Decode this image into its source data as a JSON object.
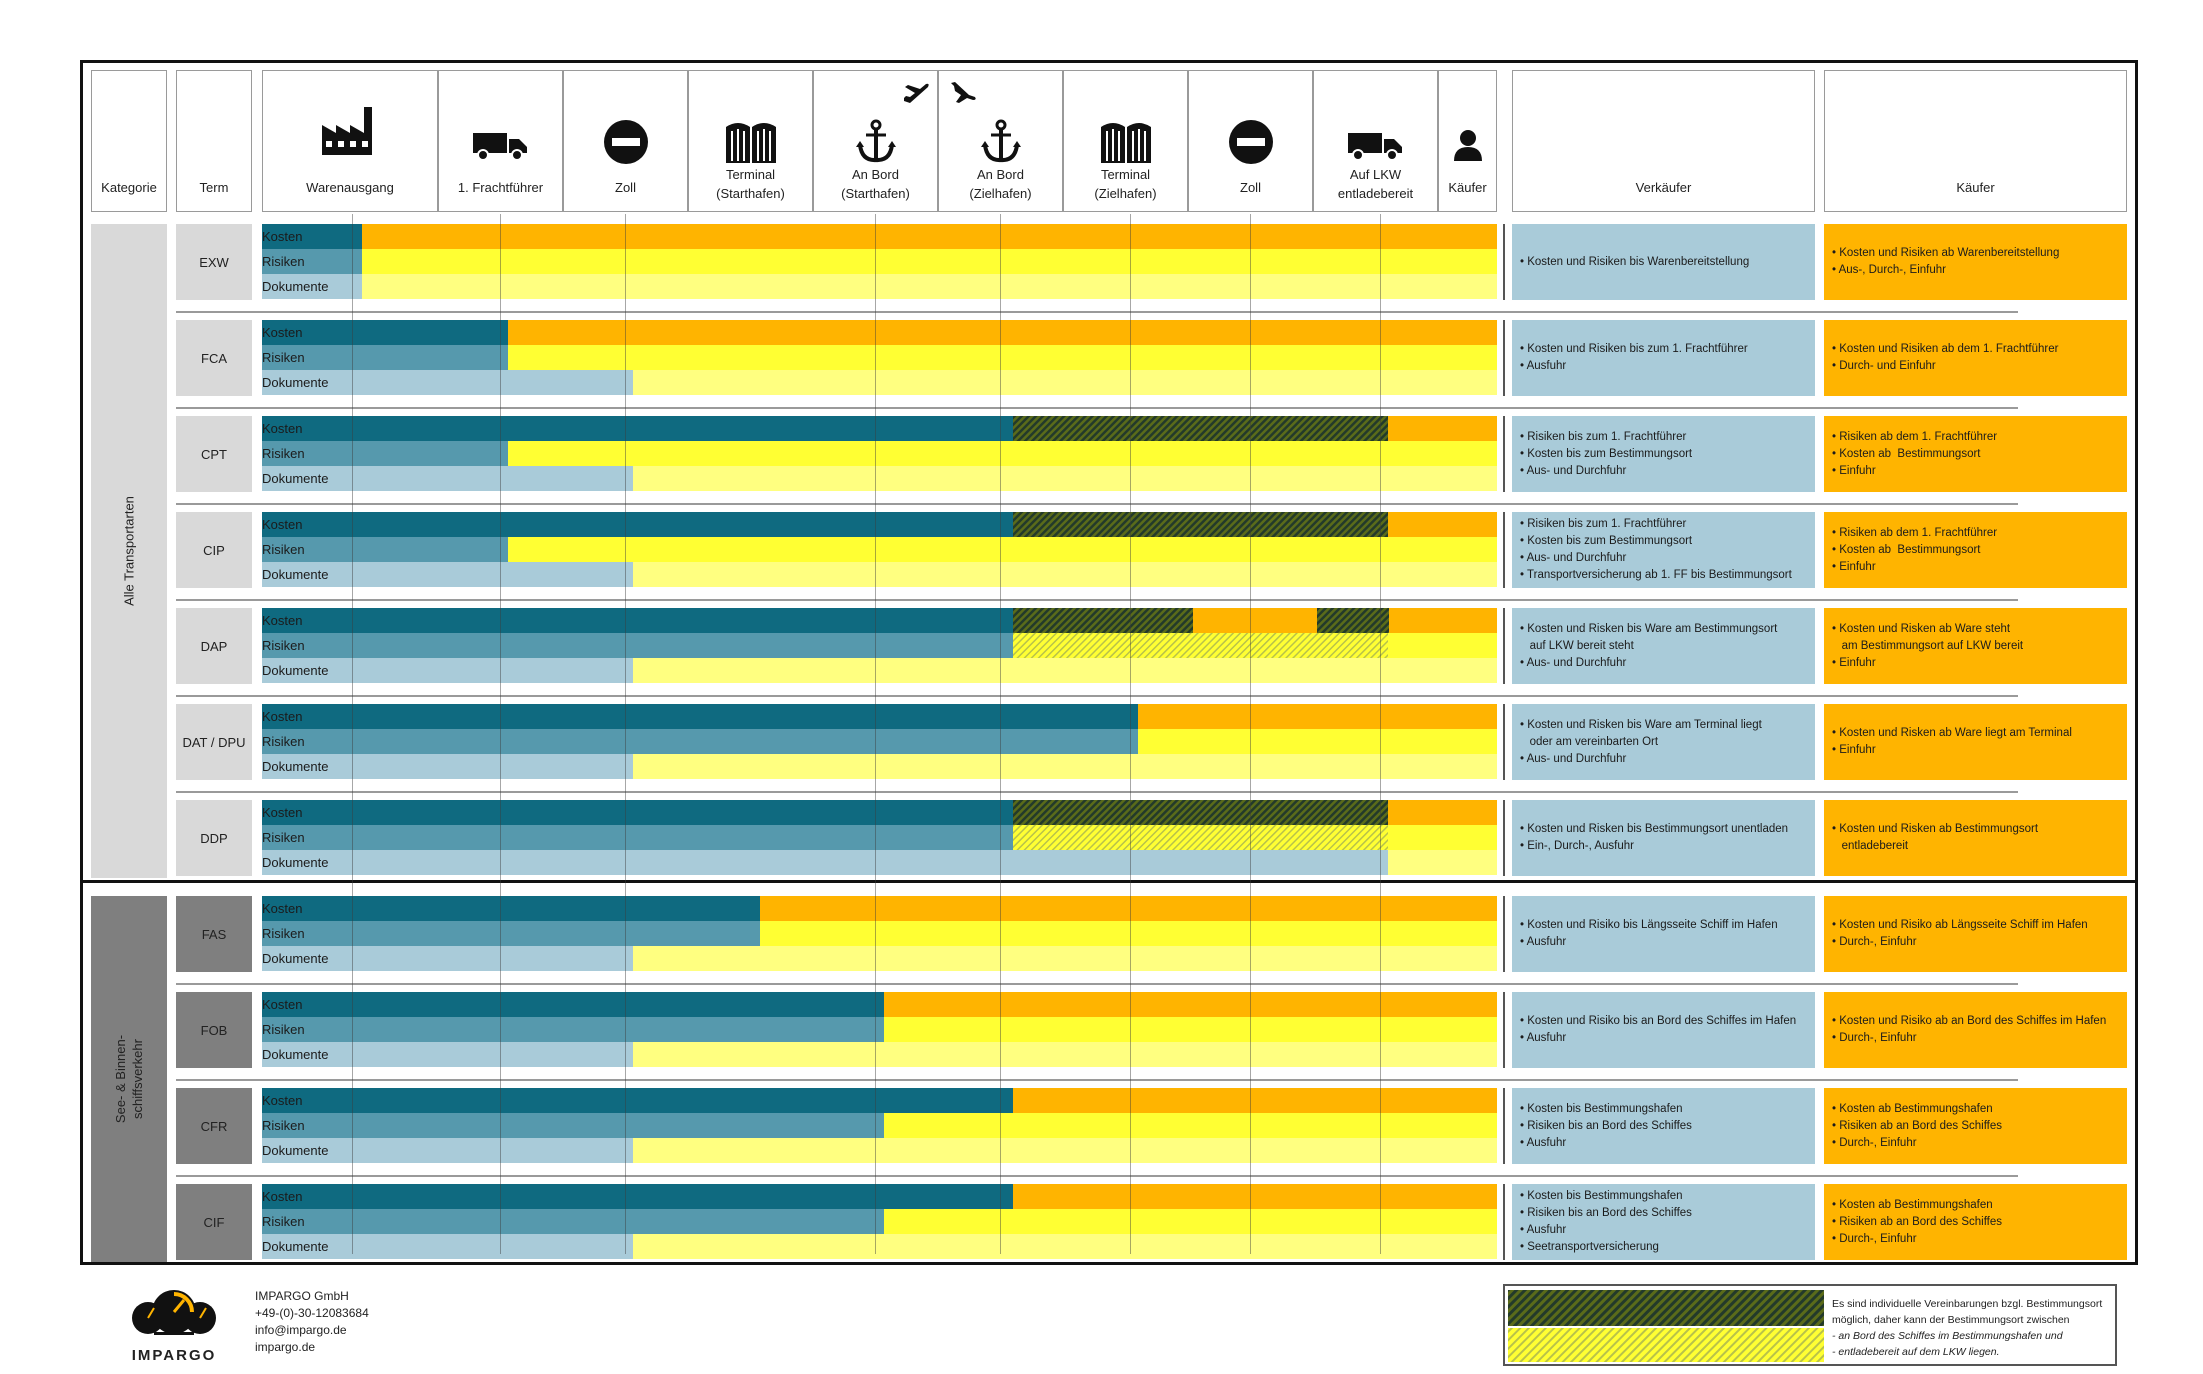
{
  "header": {
    "col_kategorie": "Kategorie",
    "col_term": "Term",
    "stages": [
      {
        "label": "Warenausgang",
        "icon": "factory-icon"
      },
      {
        "label": "1. Frachtführer",
        "icon": "truck-icon"
      },
      {
        "label": "Zoll",
        "icon": "no-entry-icon"
      },
      {
        "label": "Terminal\n(Starthafen)",
        "icon": "terminal-icon"
      },
      {
        "label": "An Bord\n(Starthafen)",
        "icon": "anchor-icon",
        "extra_icon": "plane-departure-icon"
      },
      {
        "label": "An Bord\n(Zielhafen)",
        "icon": "anchor-icon",
        "extra_icon": "plane-arrival-icon"
      },
      {
        "label": "Terminal\n(Zielhafen)",
        "icon": "terminal-icon"
      },
      {
        "label": "Zoll",
        "icon": "no-entry-icon"
      },
      {
        "label": "Auf LKW\nentladebereit",
        "icon": "truck-icon"
      },
      {
        "label": "Käufer",
        "icon": "person-icon"
      }
    ],
    "col_verkaeufer": "Verkäufer",
    "col_kaeufer": "Käufer"
  },
  "categories": [
    {
      "label": "Alle Transportarten"
    },
    {
      "label": "See- & Binnen-\nschiffsverkehr"
    }
  ],
  "row_labels": {
    "kosten": "Kosten",
    "risiken": "Risiken",
    "dokumente": "Dokumente"
  },
  "terms": [
    {
      "code": "EXW",
      "kosten": 0.081,
      "risiken": 0.081,
      "dokumente": 0.081,
      "hatch": null,
      "dashed_risk": false,
      "seller": [
        "• Kosten und Risiken bis Warenbereitstellung"
      ],
      "buyer": [
        "• Kosten und Risiken ab Warenbereitstellung",
        "• Aus-, Durch-, Einfuhr"
      ]
    },
    {
      "code": "FCA",
      "kosten": 0.199,
      "risiken": 0.199,
      "dokumente": 0.3,
      "hatch": null,
      "dashed_risk": false,
      "seller": [
        "• Kosten und Risiken bis zum 1. Frachtführer",
        "• Ausfuhr"
      ],
      "buyer": [
        "• Kosten und Risiken ab dem 1. Frachtführer",
        "• Durch- und Einfuhr"
      ]
    },
    {
      "code": "CPT",
      "kosten": 0.608,
      "risiken": 0.199,
      "dokumente": 0.3,
      "hatch": [
        0.608,
        0.912
      ],
      "dashed_risk": false,
      "seller": [
        "• Risiken bis zum 1. Frachtführer",
        "• Kosten bis zum Bestimmungsort",
        "• Aus- und Durchfuhr"
      ],
      "buyer": [
        "• Risiken ab dem 1. Frachtführer",
        "• Kosten ab  Bestimmungsort",
        "• Einfuhr"
      ]
    },
    {
      "code": "CIP",
      "kosten": 0.608,
      "risiken": 0.199,
      "dokumente": 0.3,
      "hatch": [
        0.608,
        0.912
      ],
      "dashed_risk": false,
      "seller": [
        "• Risiken bis zum 1. Frachtführer",
        "• Kosten bis zum Bestimmungsort",
        "• Aus- und Durchfuhr",
        "• Transportversicherung ab 1. FF bis Bestimmungsort"
      ],
      "buyer": [
        "• Risiken ab dem 1. Frachtführer",
        "• Kosten ab  Bestimmungsort",
        "• Einfuhr"
      ]
    },
    {
      "code": "DAP",
      "kosten": 0.608,
      "risiken": 0.608,
      "dokumente": 0.3,
      "hatch": [
        0.608,
        0.754
      ],
      "hatch2": [
        0.854,
        0.912
      ],
      "dashed_risk": true,
      "seller": [
        "• Kosten und Risken bis Ware am Bestimmungsort",
        "   auf LKW bereit steht",
        "• Aus- und Durchfuhr"
      ],
      "buyer": [
        "• Kosten und Risken ab Ware steht",
        "   am Bestimmungsort auf LKW bereit",
        "• Einfuhr"
      ]
    },
    {
      "code": "DAT / DPU",
      "kosten": 0.709,
      "risiken": 0.709,
      "dokumente": 0.3,
      "hatch": null,
      "dashed_risk": false,
      "seller": [
        "• Kosten und Risken bis Ware am Terminal liegt",
        "   oder am vereinbarten Ort",
        "• Aus- und Durchfuhr"
      ],
      "buyer": [
        "• Kosten und Risken ab Ware liegt am Terminal",
        "• Einfuhr"
      ]
    },
    {
      "code": "DDP",
      "kosten": 0.608,
      "risiken": 0.608,
      "dokumente": 0.912,
      "hatch": [
        0.608,
        0.912
      ],
      "dashed_risk": true,
      "seller": [
        "• Kosten und Risken bis Bestimmungsort unentladen",
        "• Ein-, Durch-, Ausfuhr"
      ],
      "buyer": [
        "• Kosten und Risken ab Bestimmungsort",
        "   entladebereit"
      ]
    },
    {
      "code": "FAS",
      "kosten": 0.403,
      "risiken": 0.403,
      "dokumente": 0.3,
      "hatch": null,
      "dashed_risk": false,
      "seller": [
        "• Kosten und Risiko bis Längsseite Schiff im Hafen",
        "• Ausfuhr"
      ],
      "buyer": [
        "• Kosten und Risiko ab Längsseite Schiff im Hafen",
        "• Durch-, Einfuhr"
      ]
    },
    {
      "code": "FOB",
      "kosten": 0.504,
      "risiken": 0.504,
      "dokumente": 0.3,
      "hatch": null,
      "dashed_risk": false,
      "seller": [
        "• Kosten und Risiko bis an Bord des Schiffes im Hafen",
        "• Ausfuhr"
      ],
      "buyer": [
        "• Kosten und Risiko ab an Bord des Schiffes im Hafen",
        "• Durch-, Einfuhr"
      ]
    },
    {
      "code": "CFR",
      "kosten": 0.608,
      "risiken": 0.504,
      "dokumente": 0.3,
      "hatch": null,
      "dashed_risk": false,
      "seller": [
        "• Kosten bis Bestimmungshafen",
        "• Risiken bis an Bord des Schiffes",
        "• Ausfuhr"
      ],
      "buyer": [
        "• Kosten ab Bestimmungshafen",
        "• Risiken ab an Bord des Schiffes",
        "• Durch-, Einfuhr"
      ]
    },
    {
      "code": "CIF",
      "kosten": 0.608,
      "risiken": 0.504,
      "dokumente": 0.3,
      "hatch": null,
      "dashed_risk": false,
      "seller": [
        "• Kosten bis Bestimmungshafen",
        "• Risiken bis an Bord des Schiffes",
        "• Ausfuhr",
        "• Seetransportversicherung"
      ],
      "buyer": [
        "• Kosten ab Bestimmungshafen",
        "• Risiken ab an Bord des Schiffes",
        "• Durch-, Einfuhr"
      ]
    }
  ],
  "colors": {
    "kosten_seller": "#0f6a80",
    "risiken_seller": "#5699ad",
    "dokumente_seller": "#a9cbd9",
    "kosten_buyer": "#ffb400",
    "risiken_buyer": "#ffff33",
    "dokumente_buyer": "#ffff80",
    "seller_note": "#a9cbd9",
    "buyer_note": "#ffb400",
    "category_all": "#d9d9d9",
    "category_sea": "#7f7f7f"
  },
  "footer": {
    "logo_text": "IMPARGO",
    "company": "IMPARGO GmbH",
    "phone": "+49-(0)-30-12083684",
    "email": "info@impargo.de",
    "web": "impargo.de"
  },
  "legend": {
    "line1": "Es sind individuelle Vereinbarungen bzgl. Bestimmungsort",
    "line2": "möglich, daher kann der Bestimmungsort zwischen",
    "line3": "- an Bord des Schiffes im Bestimmungshafen  und",
    "line4": "- entladebereit auf dem LKW  liegen."
  }
}
